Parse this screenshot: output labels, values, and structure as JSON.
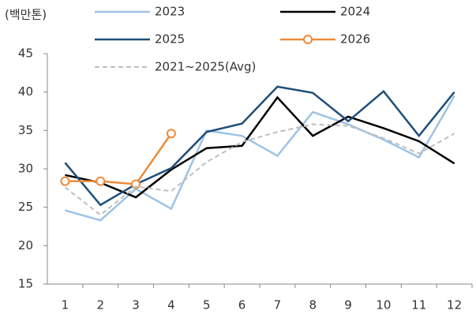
{
  "chart_data": {
    "type": "line",
    "y_label": "(백만톤)",
    "categories": [
      "1",
      "2",
      "3",
      "4",
      "5",
      "6",
      "7",
      "8",
      "9",
      "10",
      "11",
      "12"
    ],
    "ylim": [
      15,
      45
    ],
    "yticks": [
      15,
      20,
      25,
      30,
      35,
      40,
      45
    ],
    "grid": false,
    "series": [
      {
        "name": "2023",
        "color": "#9dc3e6",
        "dash": false,
        "marker": false,
        "values": [
          24.6,
          23.3,
          27.4,
          24.8,
          35.0,
          34.3,
          31.7,
          37.4,
          35.8,
          33.8,
          31.5,
          39.5
        ]
      },
      {
        "name": "2024",
        "color": "#000000",
        "dash": false,
        "marker": false,
        "values": [
          29.2,
          28.2,
          26.3,
          29.9,
          32.7,
          33.0,
          39.3,
          34.3,
          36.8,
          35.3,
          33.6,
          30.7
        ]
      },
      {
        "name": "2025",
        "color": "#1f4e79",
        "dash": false,
        "marker": false,
        "values": [
          30.8,
          25.3,
          28.0,
          30.1,
          34.8,
          35.9,
          40.7,
          39.9,
          36.2,
          40.1,
          34.3,
          40.0
        ]
      },
      {
        "name": "2026",
        "color": "#ed8b3a",
        "dash": false,
        "marker": true,
        "values": [
          28.4,
          28.4,
          28.0,
          34.6,
          null,
          null,
          null,
          null,
          null,
          null,
          null,
          null
        ]
      },
      {
        "name": "2021~2025(Avg)",
        "color": "#bfbfbf",
        "dash": true,
        "marker": false,
        "values": [
          27.6,
          24.0,
          27.7,
          27.1,
          30.9,
          33.5,
          34.8,
          35.8,
          35.6,
          34.0,
          32.0,
          34.6
        ]
      }
    ]
  }
}
